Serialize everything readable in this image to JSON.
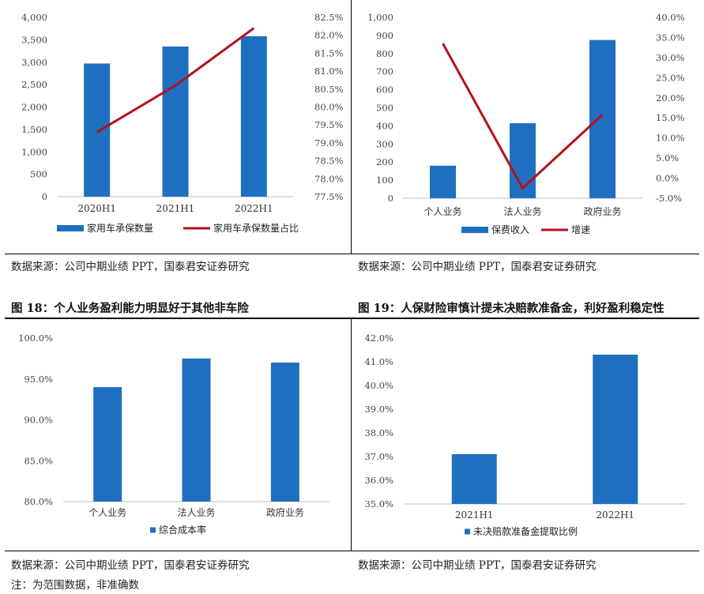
{
  "colors": {
    "bar": "#1f6fc0",
    "line": "#b3121b"
  },
  "captions": {
    "fig18": "图 18：个人业务盈利能力明显好于其他非车险",
    "fig19": "图 19：人保财险审慎计提未决赔款准备金，利好盈利稳定性"
  },
  "sources": {
    "top_left": "数据来源：公司中期业绩 PPT，国泰君安证券研究",
    "top_right": "数据来源：公司中期业绩 PPT，国泰君安证券研究",
    "bottom_left": "数据来源：公司中期业绩 PPT，国泰君安证券研究",
    "bottom_right": "数据来源：公司中期业绩 PPT，国泰君安证券研究",
    "note": "注：为范围数据，非准确数"
  },
  "chart_data": [
    {
      "type": "bar",
      "categories": [
        "2020H1",
        "2021H1",
        "2022H1"
      ],
      "series": [
        {
          "name": "家用车承保数量",
          "kind": "bar",
          "axis": "left",
          "values": [
            2970,
            3350,
            3580
          ]
        },
        {
          "name": "家用车承保数量占比",
          "kind": "line",
          "axis": "right",
          "values": [
            79.3,
            80.6,
            82.2
          ]
        }
      ],
      "y_left": {
        "ylim": [
          0,
          4000
        ],
        "ticks": [
          "0",
          "500",
          "1,000",
          "1,500",
          "2,000",
          "2,500",
          "3,000",
          "3,500",
          "4,000"
        ]
      },
      "y_right": {
        "ylim": [
          77.5,
          82.5
        ],
        "ticks": [
          "77.5%",
          "78.0%",
          "78.5%",
          "79.0%",
          "79.5%",
          "80.0%",
          "80.5%",
          "81.0%",
          "81.5%",
          "82.0%",
          "82.5%"
        ]
      },
      "legend": "bottom"
    },
    {
      "type": "bar",
      "categories": [
        "个人业务",
        "法人业务",
        "政府业务"
      ],
      "series": [
        {
          "name": "保费收入",
          "kind": "bar",
          "axis": "left",
          "values": [
            180,
            415,
            875
          ]
        },
        {
          "name": "增速",
          "kind": "line",
          "axis": "right",
          "values": [
            33.5,
            -2.5,
            15.8
          ]
        }
      ],
      "y_left": {
        "ylim": [
          0,
          1000
        ],
        "ticks": [
          "0",
          "100",
          "200",
          "300",
          "400",
          "500",
          "600",
          "700",
          "800",
          "900",
          "1,000"
        ]
      },
      "y_right": {
        "ylim": [
          -5,
          40
        ],
        "ticks": [
          "-5.0%",
          "0.0%",
          "5.0%",
          "10.0%",
          "15.0%",
          "20.0%",
          "25.0%",
          "30.0%",
          "35.0%",
          "40.0%"
        ]
      },
      "legend": "bottom"
    },
    {
      "type": "bar",
      "categories": [
        "个人业务",
        "法人业务",
        "政府业务"
      ],
      "series": [
        {
          "name": "综合成本率",
          "kind": "bar",
          "axis": "left",
          "values": [
            94.0,
            97.5,
            97.0
          ]
        }
      ],
      "y_left": {
        "ylim": [
          80,
          100
        ],
        "ticks": [
          "80.0%",
          "85.0%",
          "90.0%",
          "95.0%",
          "100.0%"
        ]
      },
      "legend": "bottom"
    },
    {
      "type": "bar",
      "categories": [
        "2021H1",
        "2022H1"
      ],
      "series": [
        {
          "name": "未决赔款准备金提取比例",
          "kind": "bar",
          "axis": "left",
          "values": [
            37.1,
            41.3
          ]
        }
      ],
      "y_left": {
        "ylim": [
          35,
          42
        ],
        "ticks": [
          "35.0%",
          "36.0%",
          "37.0%",
          "38.0%",
          "39.0%",
          "40.0%",
          "41.0%",
          "42.0%"
        ]
      },
      "legend": "bottom"
    }
  ]
}
